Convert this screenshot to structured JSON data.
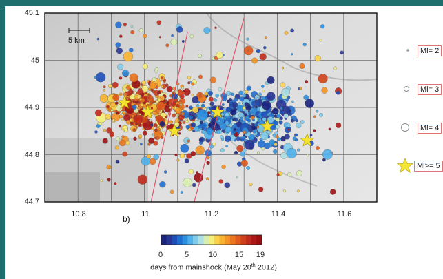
{
  "map": {
    "y_ticks": [
      "45.1",
      "45",
      "44.9",
      "44.8",
      "44.7"
    ],
    "x_ticks": [
      "10.8",
      "11",
      "11.2",
      "11.4",
      "11.6"
    ],
    "x_range": [
      10.7,
      11.7
    ],
    "y_range": [
      44.7,
      45.1
    ],
    "scale_bar_label": "5 km",
    "panel_label": "b)",
    "fault_lines": [
      {
        "from": [
          11.02,
          44.7
        ],
        "to": [
          11.13,
          45.06
        ]
      },
      {
        "from": [
          11.15,
          44.7
        ],
        "to": [
          11.3,
          45.09
        ]
      }
    ],
    "mainshocks": [
      {
        "lon": 10.94,
        "lat": 44.91
      },
      {
        "lon": 11.01,
        "lat": 44.89
      },
      {
        "lon": 11.09,
        "lat": 44.85
      },
      {
        "lon": 11.22,
        "lat": 44.89
      },
      {
        "lon": 11.37,
        "lat": 44.86
      },
      {
        "lon": 11.49,
        "lat": 44.83
      }
    ]
  },
  "legend": {
    "items": [
      {
        "label": "Ml= 2",
        "symbol": "small-dot"
      },
      {
        "label": "Ml= 3",
        "symbol": "circle-medium"
      },
      {
        "label": "Ml= 4",
        "symbol": "circle-large"
      },
      {
        "label": "Ml>= 5",
        "symbol": "star"
      }
    ]
  },
  "colorbar": {
    "ticks": [
      "0",
      "5",
      "10",
      "15",
      "19"
    ],
    "title_prefix": "days from mainshock (May 20",
    "title_sup": "th",
    "title_suffix": " 2012)",
    "min": 0,
    "max": 19,
    "colors": [
      "#1a237e",
      "#283593",
      "#1e4fb8",
      "#1f6fd1",
      "#2b8fe0",
      "#4fb0ea",
      "#7fcbe9",
      "#aee0e3",
      "#d8eeb0",
      "#f4ee7a",
      "#f9d24a",
      "#f8b431",
      "#f39424",
      "#ea761e",
      "#df5a1c",
      "#d1421c",
      "#c02a1d",
      "#ad1717",
      "#990f12"
    ]
  }
}
